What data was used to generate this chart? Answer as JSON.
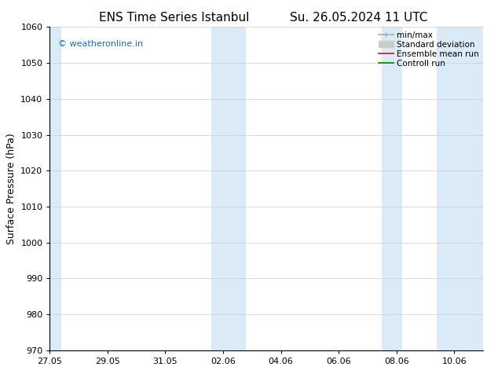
{
  "title_left": "ENS Time Series Istanbul",
  "title_right": "Su. 26.05.2024 11 UTC",
  "ylabel": "Surface Pressure (hPa)",
  "ylim": [
    970,
    1060
  ],
  "yticks": [
    970,
    980,
    990,
    1000,
    1010,
    1020,
    1030,
    1040,
    1050,
    1060
  ],
  "xlim": [
    0,
    15
  ],
  "xtick_labels": [
    "27.05",
    "29.05",
    "31.05",
    "02.06",
    "04.06",
    "06.06",
    "08.06",
    "10.06"
  ],
  "xtick_positions": [
    0,
    2,
    4,
    6,
    8,
    10,
    12,
    14
  ],
  "shaded_bands": [
    {
      "x_start": 0.0,
      "x_end": 0.4
    },
    {
      "x_start": 5.6,
      "x_end": 6.8
    },
    {
      "x_start": 11.5,
      "x_end": 12.2
    },
    {
      "x_start": 13.4,
      "x_end": 15.0
    }
  ],
  "shade_color": "#daeaf7",
  "background_color": "#ffffff",
  "watermark": "© weatheronline.in",
  "watermark_color": "#1a6bbf",
  "minmax_color": "#aaaaaa",
  "stddev_color": "#cccccc",
  "ensemble_color": "#ff0000",
  "control_color": "#008000",
  "title_fontsize": 11,
  "axis_label_fontsize": 9,
  "tick_fontsize": 8,
  "legend_fontsize": 7.5,
  "watermark_fontsize": 8
}
